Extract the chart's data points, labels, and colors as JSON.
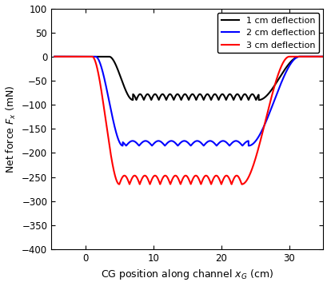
{
  "xlabel": "CG position along channel $x_G$ (cm)",
  "ylabel": "Net force $F_x$ (mN)",
  "xlim": [
    -5,
    35
  ],
  "ylim": [
    -400,
    100
  ],
  "xticks": [
    0,
    10,
    20,
    30
  ],
  "yticks": [
    100,
    50,
    0,
    -50,
    -100,
    -150,
    -200,
    -250,
    -300,
    -350,
    -400
  ],
  "legend": [
    "1 cm deflection",
    "2 cm deflection",
    "3 cm deflection"
  ],
  "colors": [
    "black",
    "blue",
    "red"
  ],
  "line_width": 1.5,
  "background_color": "#ffffff",
  "figsize": [
    4.1,
    3.58
  ],
  "dpi": 100,
  "curves": {
    "black": {
      "x_start": -4.5,
      "x_ramp_start": 3.5,
      "x_flat_start": 7.0,
      "x_flat_end": 25.5,
      "x_ramp_end": 31.5,
      "x_end": 35,
      "base_level": -90,
      "ripple_amp": 12,
      "ripple_period": 2.2,
      "ripple_start": 7.5,
      "n_ripples": 9,
      "rise_overshoot": -20
    },
    "blue": {
      "x_start": -4.5,
      "x_ramp_start": 1.5,
      "x_flat_start": 5.5,
      "x_flat_end": 24.0,
      "x_ramp_end": 31.5,
      "x_end": 35,
      "base_level": -185,
      "ripple_amp": 10,
      "ripple_period": 3.8,
      "ripple_start": 6.0,
      "n_ripples": 5,
      "rise_overshoot": -40
    },
    "red": {
      "x_start": -4.5,
      "x_ramp_start": 1.0,
      "x_flat_start": 5.0,
      "x_flat_end": 23.0,
      "x_ramp_end": 30.0,
      "x_end": 35,
      "base_level": -265,
      "ripple_amp": 18,
      "ripple_period": 3.0,
      "ripple_start": 6.5,
      "n_ripples": 6,
      "rise_overshoot": -130
    }
  }
}
